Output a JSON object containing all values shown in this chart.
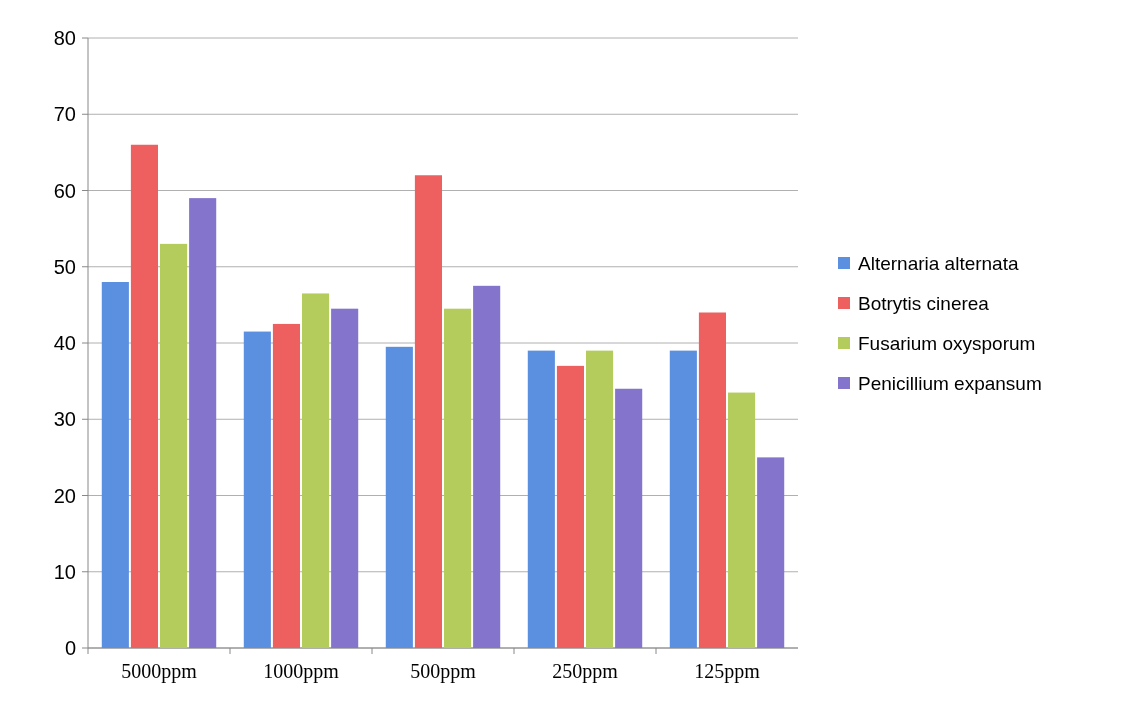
{
  "chart_data": {
    "type": "bar",
    "categories": [
      "5000ppm",
      "1000ppm",
      "500ppm",
      "250ppm",
      "125ppm"
    ],
    "series": [
      {
        "name": "Alternaria alternata",
        "color": "#5b8fe0",
        "values": [
          48,
          41.5,
          39.5,
          39,
          39
        ]
      },
      {
        "name": "Botrytis cinerea",
        "color": "#ee6060",
        "values": [
          66,
          42.5,
          62,
          37,
          44
        ]
      },
      {
        "name": "Fusarium oxysporum",
        "color": "#b3cc5c",
        "values": [
          53,
          46.5,
          44.5,
          39,
          33.5
        ]
      },
      {
        "name": "Penicillium expansum",
        "color": "#8474cc",
        "values": [
          59,
          44.5,
          47.5,
          34,
          25
        ]
      }
    ],
    "ylim": [
      0,
      80
    ],
    "yticks": [
      0,
      10,
      20,
      30,
      40,
      50,
      60,
      70,
      80
    ],
    "grid": "y",
    "legend": "right"
  }
}
